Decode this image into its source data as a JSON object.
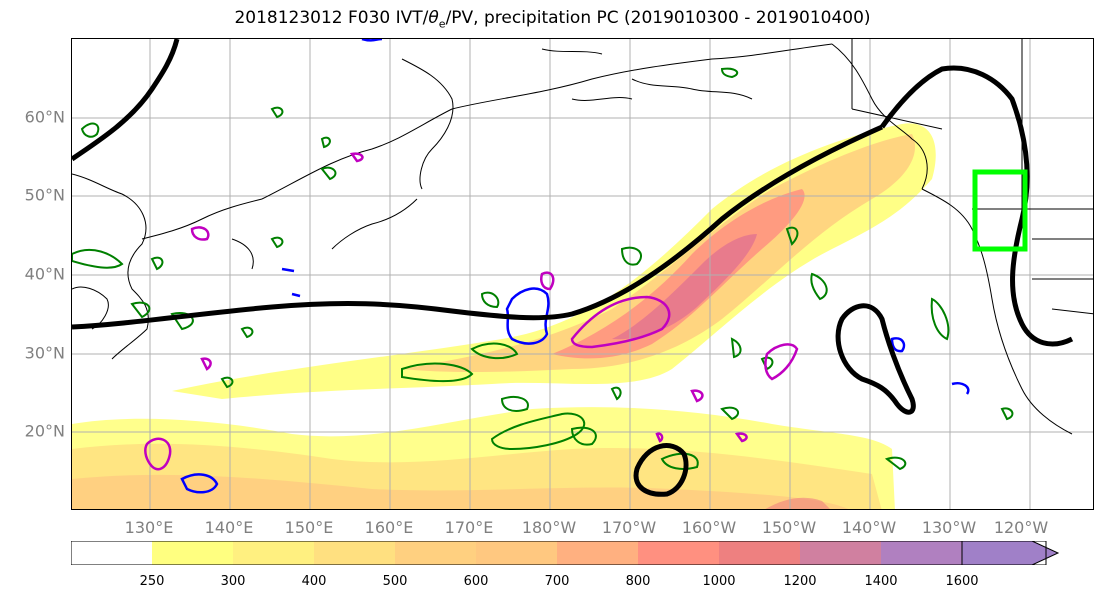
{
  "title": {
    "prefix": "2018123012 F030 IVT/",
    "theta": "θ",
    "theta_sub": "e",
    "suffix": "/PV, precipitation PC (2019010300 - 2019010400)"
  },
  "map": {
    "lat_labels": [
      "60°N",
      "50°N",
      "40°N",
      "30°N",
      "20°N"
    ],
    "lon_labels": [
      "130°E",
      "140°E",
      "150°E",
      "160°E",
      "170°E",
      "180°W",
      "170°W",
      "160°W",
      "150°W",
      "140°W",
      "130°W",
      "120°W"
    ],
    "colors": {
      "ivt_low": "#ffff80",
      "ivt_mid": "#ffc880",
      "ivt_high": "#f08080",
      "precip_pc": "#008000",
      "pv_contour": "#0000ff",
      "theta_e_contour": "#c000c0",
      "jet_contour": "#000000",
      "target_box": "#00ff00"
    }
  },
  "colorbar": {
    "ticks": [
      "250",
      "300",
      "400",
      "500",
      "600",
      "700",
      "800",
      "1000",
      "1200",
      "1400",
      "1600"
    ],
    "colors": [
      "#ffffff",
      "#ffff80",
      "#fff080",
      "#ffe080",
      "#ffd080",
      "#ffc880",
      "#ffb080",
      "#ff9080",
      "#ee8080",
      "#d080a0",
      "#b080c0",
      "#a080c8"
    ]
  }
}
